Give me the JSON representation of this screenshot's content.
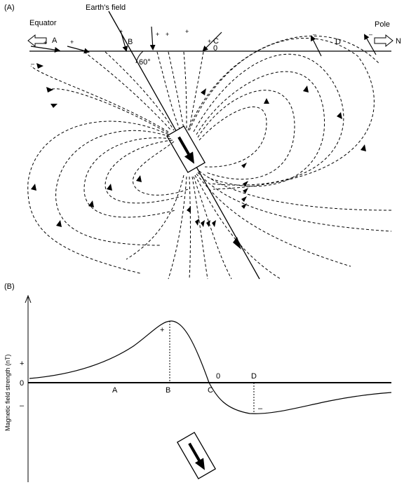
{
  "panel_a": {
    "label": "(A)",
    "earth_field": "Earth's field",
    "equator": "Equator",
    "pole": "Pole",
    "north": "N",
    "angle": "60°",
    "points": {
      "a": "A",
      "b": "B",
      "c": "C",
      "d": "D",
      "zero": "0"
    },
    "signs": {
      "plus": "+",
      "minus": "–"
    }
  },
  "panel_b": {
    "label": "(B)",
    "ylabel": "Magnetic field strength (nT)",
    "ytick_plus": "+",
    "ytick_zero": "0",
    "ytick_minus": "–",
    "points": {
      "a": "A",
      "b": "B",
      "c": "C",
      "d": "D",
      "zero": "0"
    },
    "peak_sign": "+",
    "trough_sign": "–"
  },
  "chart_data": {
    "type": "line",
    "xlabel": "",
    "ylabel": "Magnetic field strength (nT)",
    "categories": [
      "A",
      "B",
      "C",
      "D"
    ],
    "series": [
      {
        "values": [
          0.6,
          6.4,
          0.0,
          -3.2
        ]
      }
    ]
  }
}
